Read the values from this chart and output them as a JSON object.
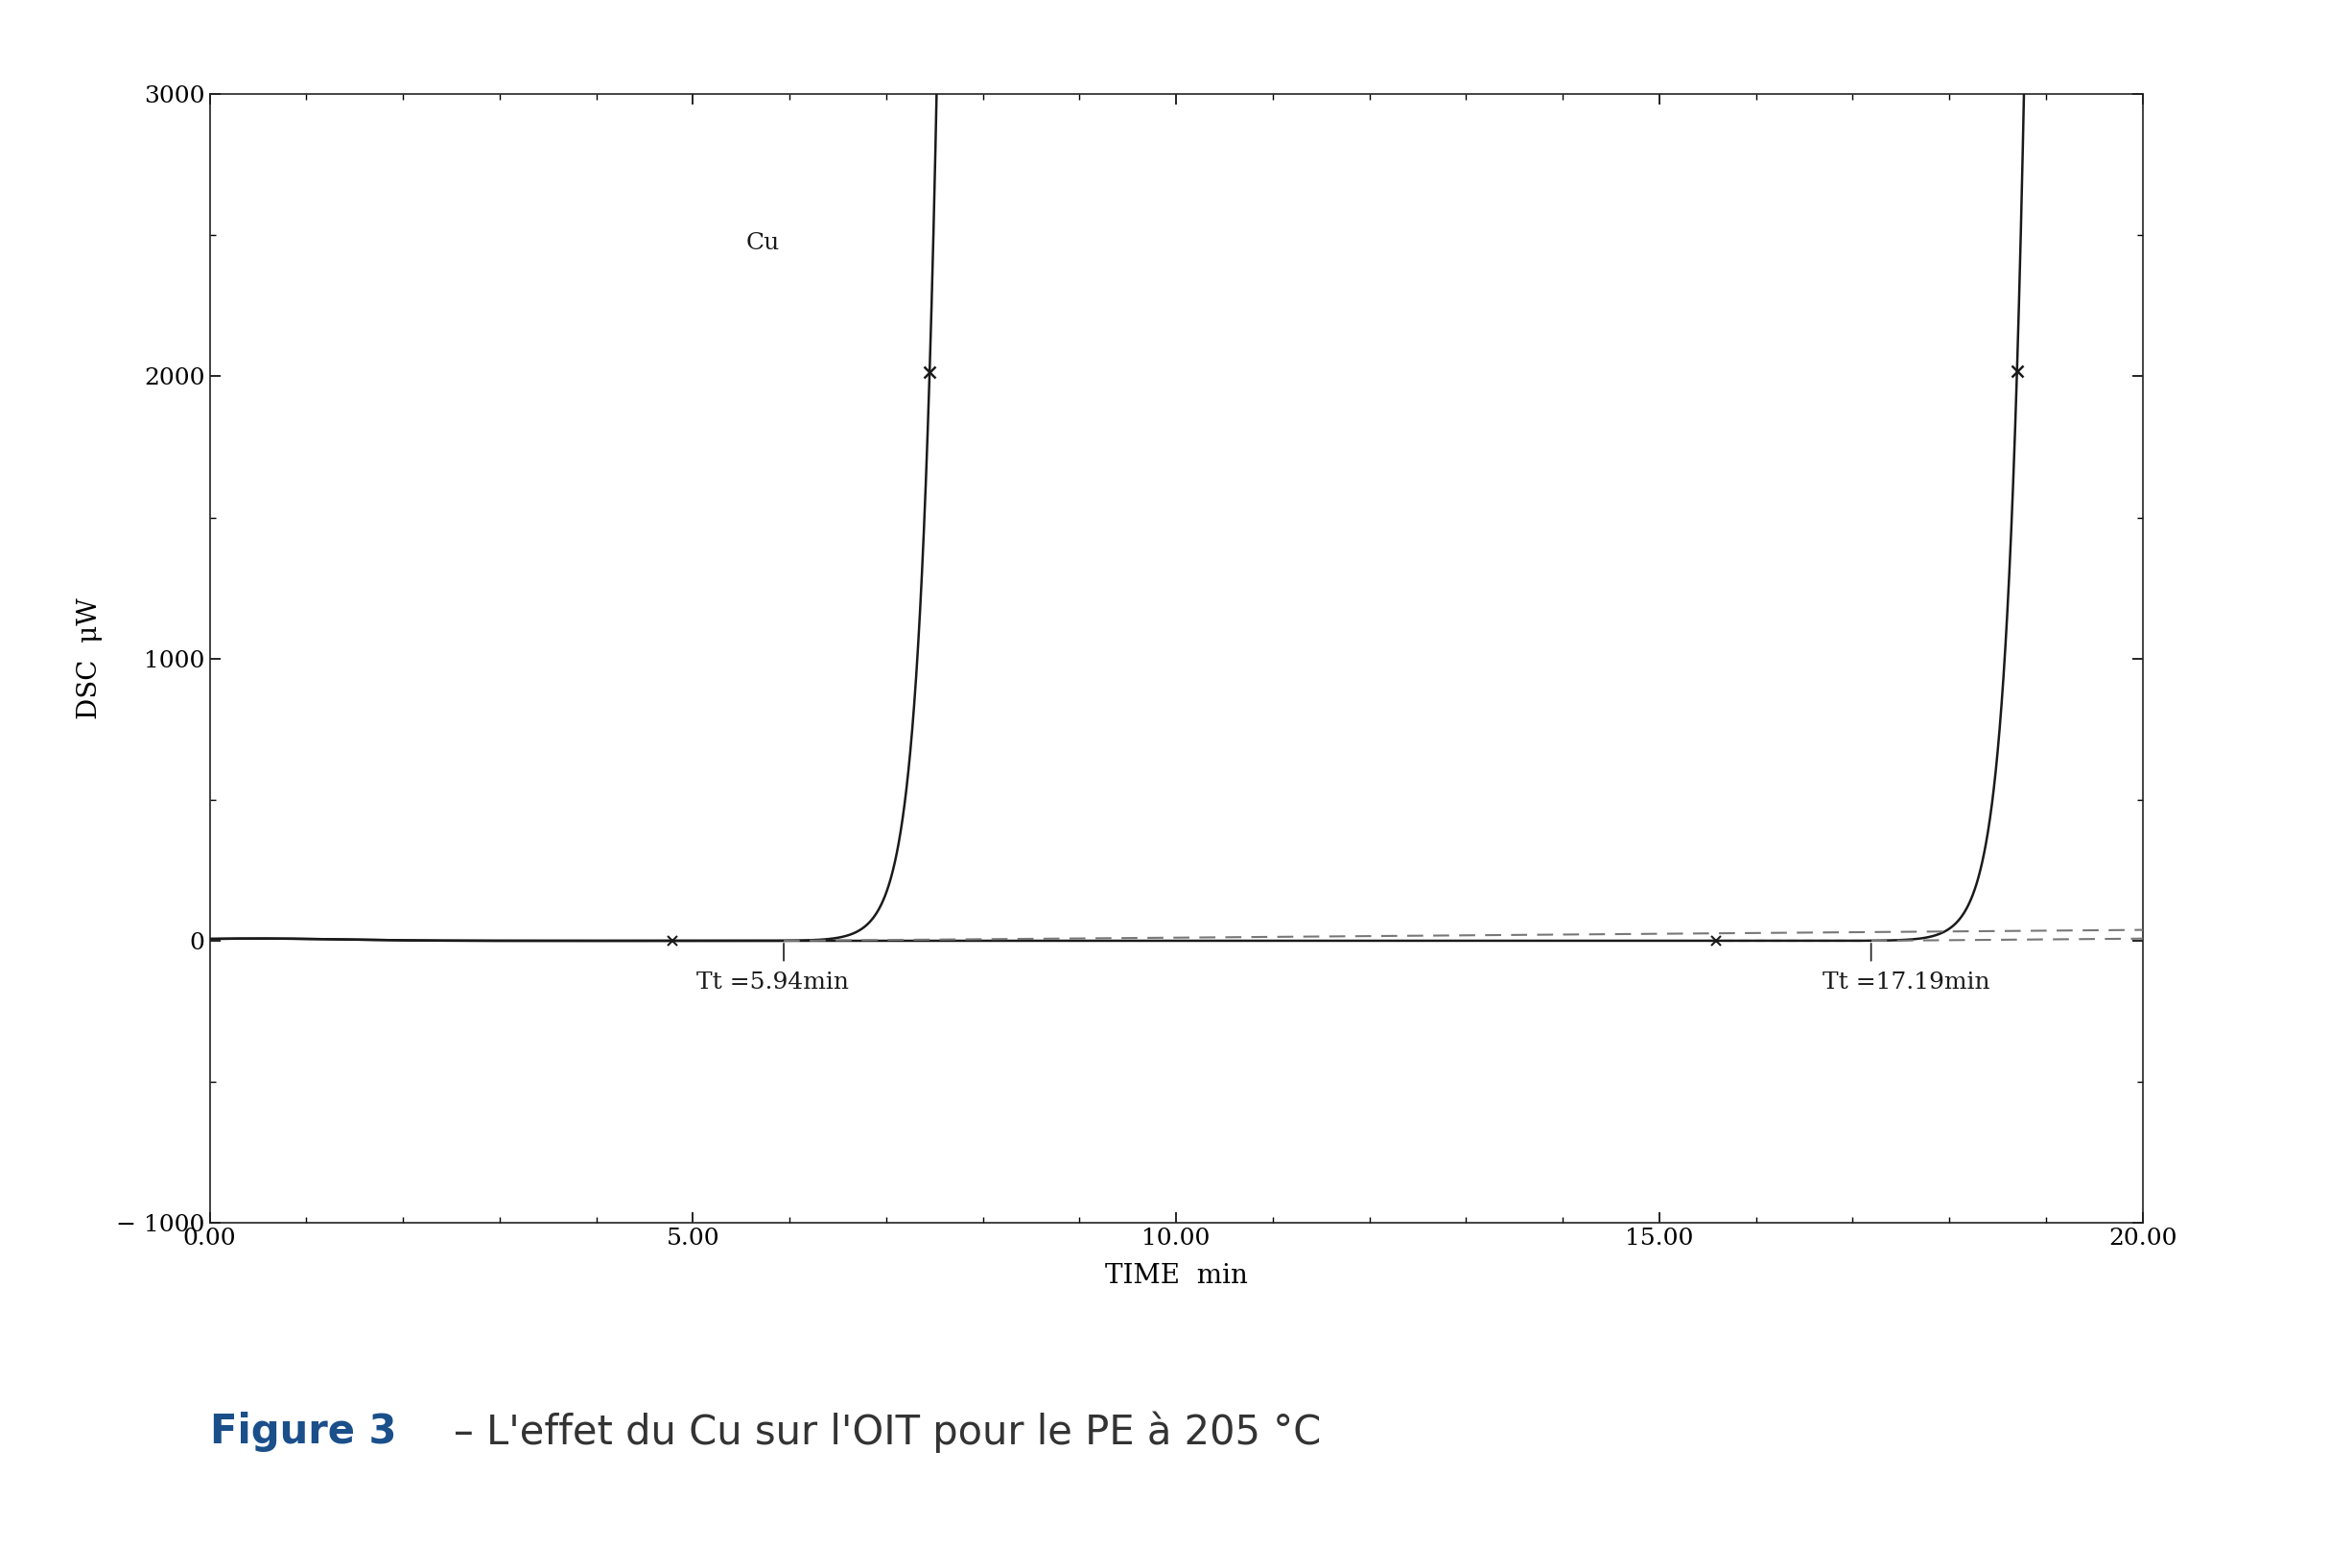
{
  "xlabel": "TIME  min",
  "ylabel": "DSC  μW",
  "xlim": [
    0.0,
    20.0
  ],
  "ylim": [
    -1000,
    3000
  ],
  "xticks": [
    0.0,
    5.0,
    10.0,
    15.0,
    20.0
  ],
  "yticks": [
    -1000,
    0,
    1000,
    2000,
    3000
  ],
  "curve1_label": "Cu",
  "curve1_Tt": 5.94,
  "curve1_annotation": "Tt =5.94min",
  "curve2_Tt": 17.19,
  "curve2_annotation": "Tt =17.19min",
  "curve_color": "#1a1a1a",
  "tangent_color": "#777777",
  "background_color": "#ffffff",
  "title_color": "#1a4f8a",
  "title_fontsize": 30,
  "axis_fontsize": 20,
  "tick_fontsize": 18,
  "annotation_fontsize": 18,
  "curve1_exp_rate": 5.5,
  "curve1_exp_scale": 1.0,
  "curve2_exp_rate": 5.5,
  "curve2_exp_scale": 1.0
}
